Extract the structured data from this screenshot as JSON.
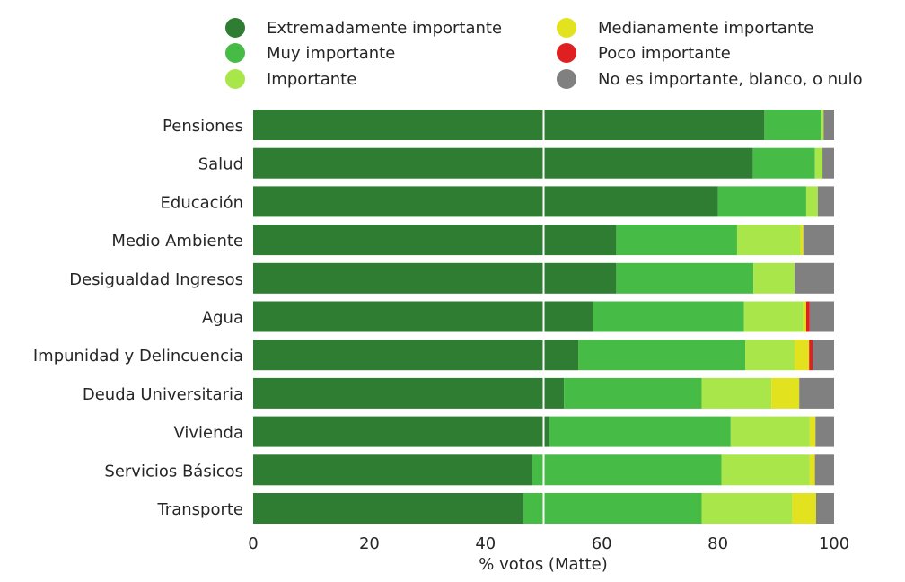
{
  "chart_data": {
    "type": "bar",
    "orientation": "horizontal",
    "stacked": true,
    "title": "",
    "xlabel": "% votos (Matte)",
    "ylabel": "",
    "xlim": [
      0,
      100
    ],
    "xticks": [
      0,
      20,
      40,
      60,
      80,
      100
    ],
    "grid": "vertical",
    "reference_line": 50,
    "legend_position": "top",
    "categories": [
      "Pensiones",
      "Salud",
      "Educación",
      "Medio Ambiente",
      "Desigualdad Ingresos",
      "Agua",
      "Impunidad y Delincuencia",
      "Deuda Universitaria",
      "Vivienda",
      "Servicios Básicos",
      "Transporte"
    ],
    "series": [
      {
        "name": "Extremadamente importante",
        "color": "#2e7d32",
        "values": [
          88.0,
          86.0,
          80.0,
          62.5,
          62.5,
          58.5,
          56.0,
          53.5,
          51.0,
          48.0,
          46.5
        ]
      },
      {
        "name": "Muy importante",
        "color": "#46bb46",
        "values": [
          9.7,
          10.7,
          15.2,
          20.8,
          23.6,
          26.0,
          28.7,
          23.7,
          31.2,
          32.6,
          30.7
        ]
      },
      {
        "name": "Importante",
        "color": "#a8e64a",
        "values": [
          0.5,
          1.3,
          2.0,
          10.9,
          7.1,
          10.2,
          8.5,
          12.0,
          13.6,
          15.2,
          15.6
        ]
      },
      {
        "name": "Medianamente importante",
        "color": "#e2e21e",
        "values": [
          0,
          0,
          0,
          0.5,
          0,
          0.5,
          2.5,
          4.8,
          1.0,
          0.9,
          4.1
        ]
      },
      {
        "name": "Poco importante",
        "color": "#e02020",
        "values": [
          0,
          0,
          0,
          0,
          0,
          0.6,
          0.6,
          0,
          0,
          0,
          0
        ]
      },
      {
        "name": "No es importante, blanco, o nulo",
        "color": "#808080",
        "values": [
          1.8,
          2.0,
          2.8,
          5.3,
          6.8,
          4.2,
          3.7,
          6.0,
          3.2,
          3.3,
          3.1
        ]
      }
    ]
  }
}
